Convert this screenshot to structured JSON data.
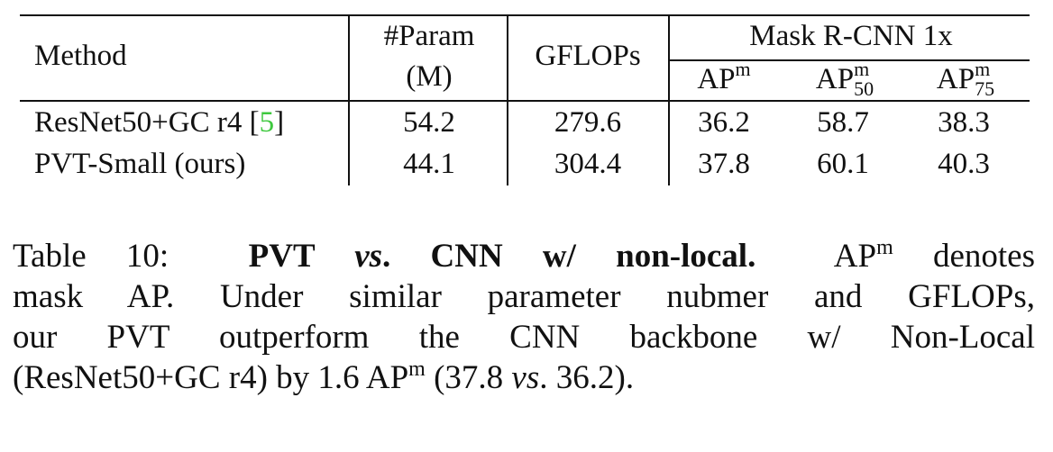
{
  "table": {
    "header": {
      "method": "Method",
      "param_line1": "#Param",
      "param_line2": "(M)",
      "gflops": "GFLOPs",
      "group": "Mask R-CNN 1x",
      "ap_base": "AP",
      "ap_sup": "m",
      "ap50_sub": "50",
      "ap75_sub": "75"
    },
    "rows": [
      {
        "method": "ResNet50+GC r4 [",
        "ref": "5",
        "method_end": "]",
        "param": "54.2",
        "gflops": "279.6",
        "ap": "36.2",
        "ap50": "58.7",
        "ap75": "38.3"
      },
      {
        "method": "PVT-Small (ours)",
        "ref": "",
        "method_end": "",
        "param": "44.1",
        "gflops": "304.4",
        "ap": "37.8",
        "ap50": "60.1",
        "ap75": "40.3"
      }
    ],
    "ref_color": "#3ec83e"
  },
  "caption": {
    "label": "Table 10:",
    "bold_1": "PVT",
    "bold_italic": "vs",
    "bold_2": ". CNN w/ non-local.",
    "t1": "AP",
    "t1_sup": "m",
    "t2": "denotes",
    "line2": "mask AP. Under similar parameter nubmer and GFLOPs,",
    "line3": "our PVT outperform the CNN backbone w/ Non-Local",
    "line4_a": "(ResNet50+GC r4) by 1.6 AP",
    "line4_sup": "m",
    "line4_b": "(37.8",
    "line4_vs": "vs",
    "line4_c": ". 36.2)."
  }
}
